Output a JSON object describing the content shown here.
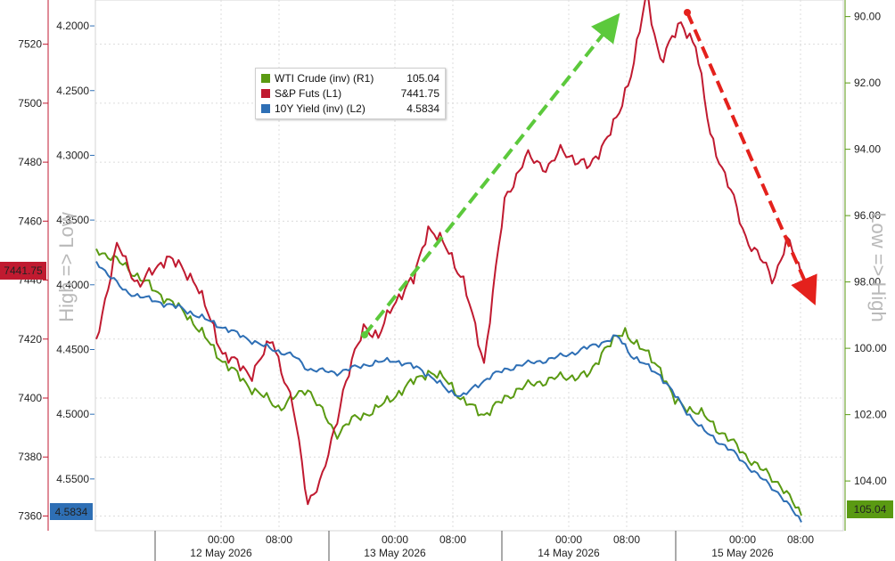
{
  "chart_data": {
    "type": "line",
    "legend_position": "top-left",
    "grid": true,
    "colors": {
      "crude": "#5a9a12",
      "spx": "#c01a30",
      "yield": "#2e6fb5",
      "arrow_up": "#5cc93c",
      "arrow_down": "#e4211c",
      "right_axis": "#5a9a12"
    },
    "x_labels": [
      {
        "time": "00:00",
        "date": "12 May 2026"
      },
      {
        "time": "08:00",
        "date": ""
      },
      {
        "time": "00:00",
        "date": "13 May 2026"
      },
      {
        "time": "08:00",
        "date": ""
      },
      {
        "time": "00:00",
        "date": "14 May 2026"
      },
      {
        "time": "08:00",
        "date": ""
      },
      {
        "time": "00:00",
        "date": "15 May 2026"
      },
      {
        "time": "08:00",
        "date": ""
      }
    ],
    "left_axis_spx": {
      "ticks": [
        "7520",
        "7500",
        "7480",
        "7460",
        "7440",
        "7420",
        "7400",
        "7380",
        "7360"
      ],
      "ylim": [
        7355,
        7535
      ]
    },
    "left_axis_yield": {
      "ticks": [
        "4.2000",
        "4.2500",
        "4.3000",
        "4.3500",
        "4.4000",
        "4.4500",
        "4.5000",
        "4.5500"
      ],
      "ylim": [
        4.18,
        4.59
      ],
      "inverted": true
    },
    "right_axis_crude": {
      "ticks": [
        "90.00",
        "92.00",
        "94.00",
        "96.00",
        "98.00",
        "100.00",
        "102.00",
        "104.00"
      ],
      "ylim": [
        89.5,
        105.5
      ],
      "inverted": true
    },
    "left_side_label": "High => Low",
    "right_side_label": "Low => High",
    "last_values": {
      "spx": "7441.75",
      "yield": "4.5834",
      "crude": "105.04"
    },
    "series": [
      {
        "name": "WTI Crude (inv) (R1)",
        "last": "105.04",
        "t": [
          0,
          0.04,
          0.08,
          0.13,
          0.18,
          0.22,
          0.26,
          0.3,
          0.34,
          0.36,
          0.4,
          0.45,
          0.47,
          0.5,
          0.52,
          0.55,
          0.6,
          0.65,
          0.7,
          0.72,
          0.75,
          0.8,
          0.82,
          0.86,
          0.9,
          0.94,
          0.97,
          1.0
        ],
        "values": [
          97.0,
          97.5,
          98.2,
          99.0,
          100.4,
          101.2,
          101.8,
          101.2,
          102.6,
          102.2,
          101.8,
          101.0,
          100.7,
          101.0,
          101.6,
          102.0,
          101.2,
          100.9,
          100.8,
          100.0,
          99.5,
          100.6,
          101.6,
          102.0,
          102.8,
          103.6,
          104.1,
          105.04
        ]
      },
      {
        "name": "S&P Futs (L1)",
        "last": "7441.75",
        "t": [
          0,
          0.03,
          0.06,
          0.1,
          0.14,
          0.18,
          0.22,
          0.25,
          0.28,
          0.3,
          0.32,
          0.35,
          0.38,
          0.4,
          0.42,
          0.45,
          0.47,
          0.5,
          0.52,
          0.55,
          0.58,
          0.61,
          0.64,
          0.66,
          0.7,
          0.72,
          0.74,
          0.76,
          0.78,
          0.8,
          0.83,
          0.85,
          0.87,
          0.9,
          0.92,
          0.94,
          0.96,
          0.98,
          1.0
        ],
        "values": [
          7420,
          7452,
          7438,
          7448,
          7440,
          7415,
          7408,
          7420,
          7396,
          7365,
          7372,
          7402,
          7425,
          7420,
          7432,
          7440,
          7458,
          7450,
          7440,
          7412,
          7468,
          7482,
          7478,
          7484,
          7478,
          7487,
          7495,
          7512,
          7536,
          7515,
          7527,
          7520,
          7490,
          7470,
          7455,
          7448,
          7440,
          7454,
          7441.75
        ]
      },
      {
        "name": "10Y Yield (inv) (L2)",
        "last": "4.5834",
        "t": [
          0,
          0.04,
          0.08,
          0.12,
          0.16,
          0.2,
          0.24,
          0.28,
          0.3,
          0.34,
          0.38,
          0.42,
          0.46,
          0.5,
          0.52,
          0.56,
          0.6,
          0.64,
          0.68,
          0.7,
          0.74,
          0.76,
          0.8,
          0.84,
          0.86,
          0.9,
          0.94,
          0.97,
          1.0
        ],
        "values": [
          4.382,
          4.405,
          4.412,
          4.418,
          4.428,
          4.438,
          4.448,
          4.455,
          4.465,
          4.468,
          4.462,
          4.458,
          4.465,
          4.482,
          4.486,
          4.47,
          4.462,
          4.458,
          4.452,
          4.448,
          4.44,
          4.455,
          4.47,
          4.5,
          4.512,
          4.528,
          4.548,
          4.562,
          4.5834
        ]
      }
    ]
  }
}
